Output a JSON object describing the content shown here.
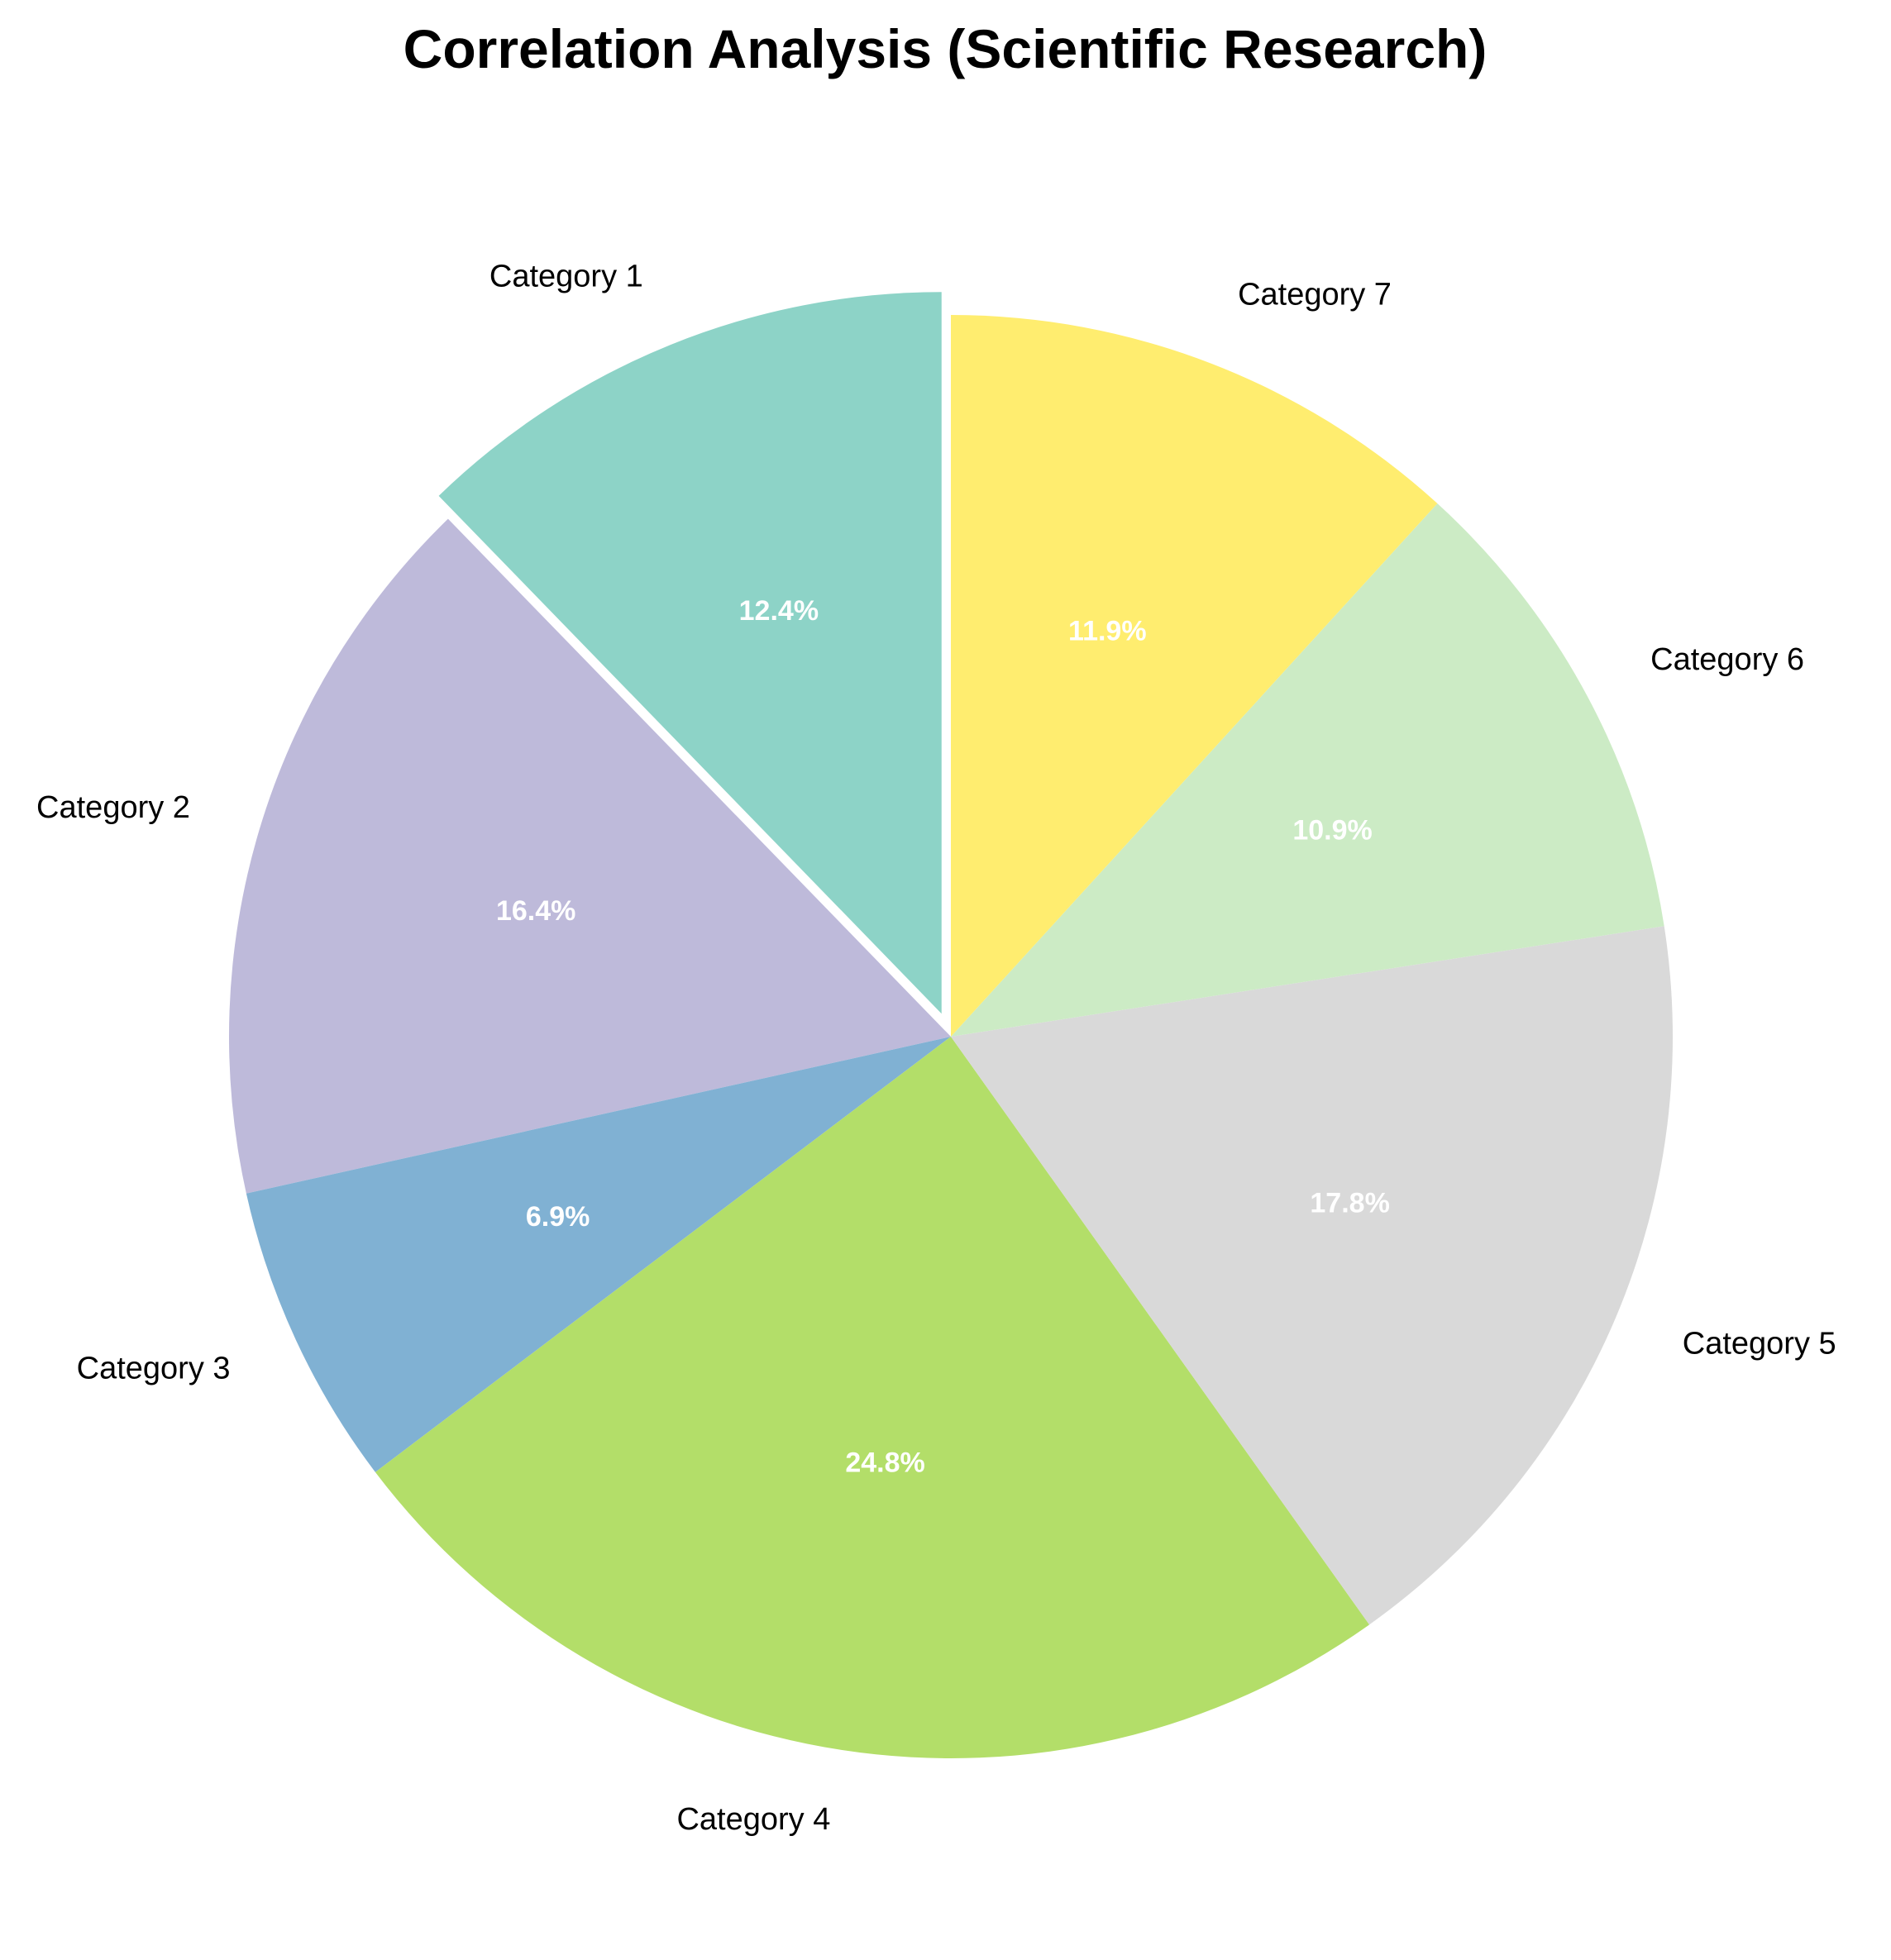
{
  "chart_data": {
    "type": "pie",
    "title": "Correlation Analysis (Scientific Research)",
    "categories": [
      "Category 1",
      "Category 2",
      "Category 3",
      "Category 4",
      "Category 5",
      "Category 6",
      "Category 7"
    ],
    "values": [
      12.4,
      16.4,
      6.9,
      24.8,
      17.8,
      10.9,
      11.9
    ],
    "value_labels": [
      "12.4%",
      "16.4%",
      "6.9%",
      "24.8%",
      "17.8%",
      "10.9%",
      "11.9%"
    ],
    "colors": [
      "#8dd3c7",
      "#bebada",
      "#80b1d3",
      "#b3de69",
      "#d9d9d9",
      "#ccebc5",
      "#ffed6f"
    ],
    "exploded": [
      "Category 1"
    ],
    "direction": "counterclockwise",
    "start": "top"
  }
}
